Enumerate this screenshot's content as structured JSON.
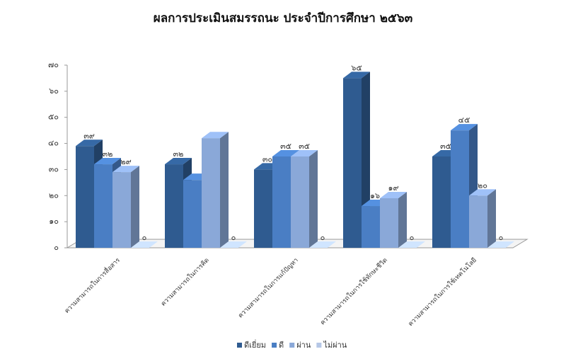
{
  "chart_data": {
    "type": "bar3d",
    "title": "ผลการประเมินสมรรถนะ ประจำปีการศึกษา ๒๕๖๓",
    "categories": [
      "ความสามารถในการสื่อสาร",
      "ความสามารถในการคิด",
      "ความสามารถในการแก้ปัญหา",
      "ความสามารถในการใช้ทักษะชีวิต",
      "ความสามารถในการใช้เทคโนโลยี"
    ],
    "series": [
      {
        "name": "ดีเยี่ยม",
        "color": "#2f5b90",
        "values": [
          39,
          32,
          30,
          65,
          35
        ],
        "value_labels": [
          "๓๙",
          "๓๒",
          "๓๐",
          "๖๕",
          "๓๕"
        ]
      },
      {
        "name": "ดี",
        "color": "#4a7ec4",
        "values": [
          32,
          26,
          35,
          16,
          45
        ],
        "value_labels": [
          "๓๒",
          null,
          "๓๕",
          "๑๖",
          "๔๕"
        ]
      },
      {
        "name": "ผ่าน",
        "color": "#8aa8d8",
        "values": [
          29,
          42,
          35,
          19,
          20
        ],
        "value_labels": [
          "๒๙",
          null,
          "๓๕",
          "๑๙",
          "๒๐"
        ]
      },
      {
        "name": "ไม่ผ่าน",
        "color": "#b5c7e6",
        "values": [
          0,
          0,
          0,
          0,
          0
        ],
        "value_labels": [
          "๐",
          "๐",
          "๐",
          "๐",
          "๐"
        ]
      }
    ],
    "ylim": [
      0,
      70
    ],
    "yticks": [
      {
        "value": 0,
        "label": "๐"
      },
      {
        "value": 10,
        "label": "๑๐"
      },
      {
        "value": 20,
        "label": "๒๐"
      },
      {
        "value": 30,
        "label": "๓๐"
      },
      {
        "value": 40,
        "label": "๔๐"
      },
      {
        "value": 50,
        "label": "๕๐"
      },
      {
        "value": 60,
        "label": "๖๐"
      },
      {
        "value": 70,
        "label": "๗๐"
      }
    ]
  }
}
